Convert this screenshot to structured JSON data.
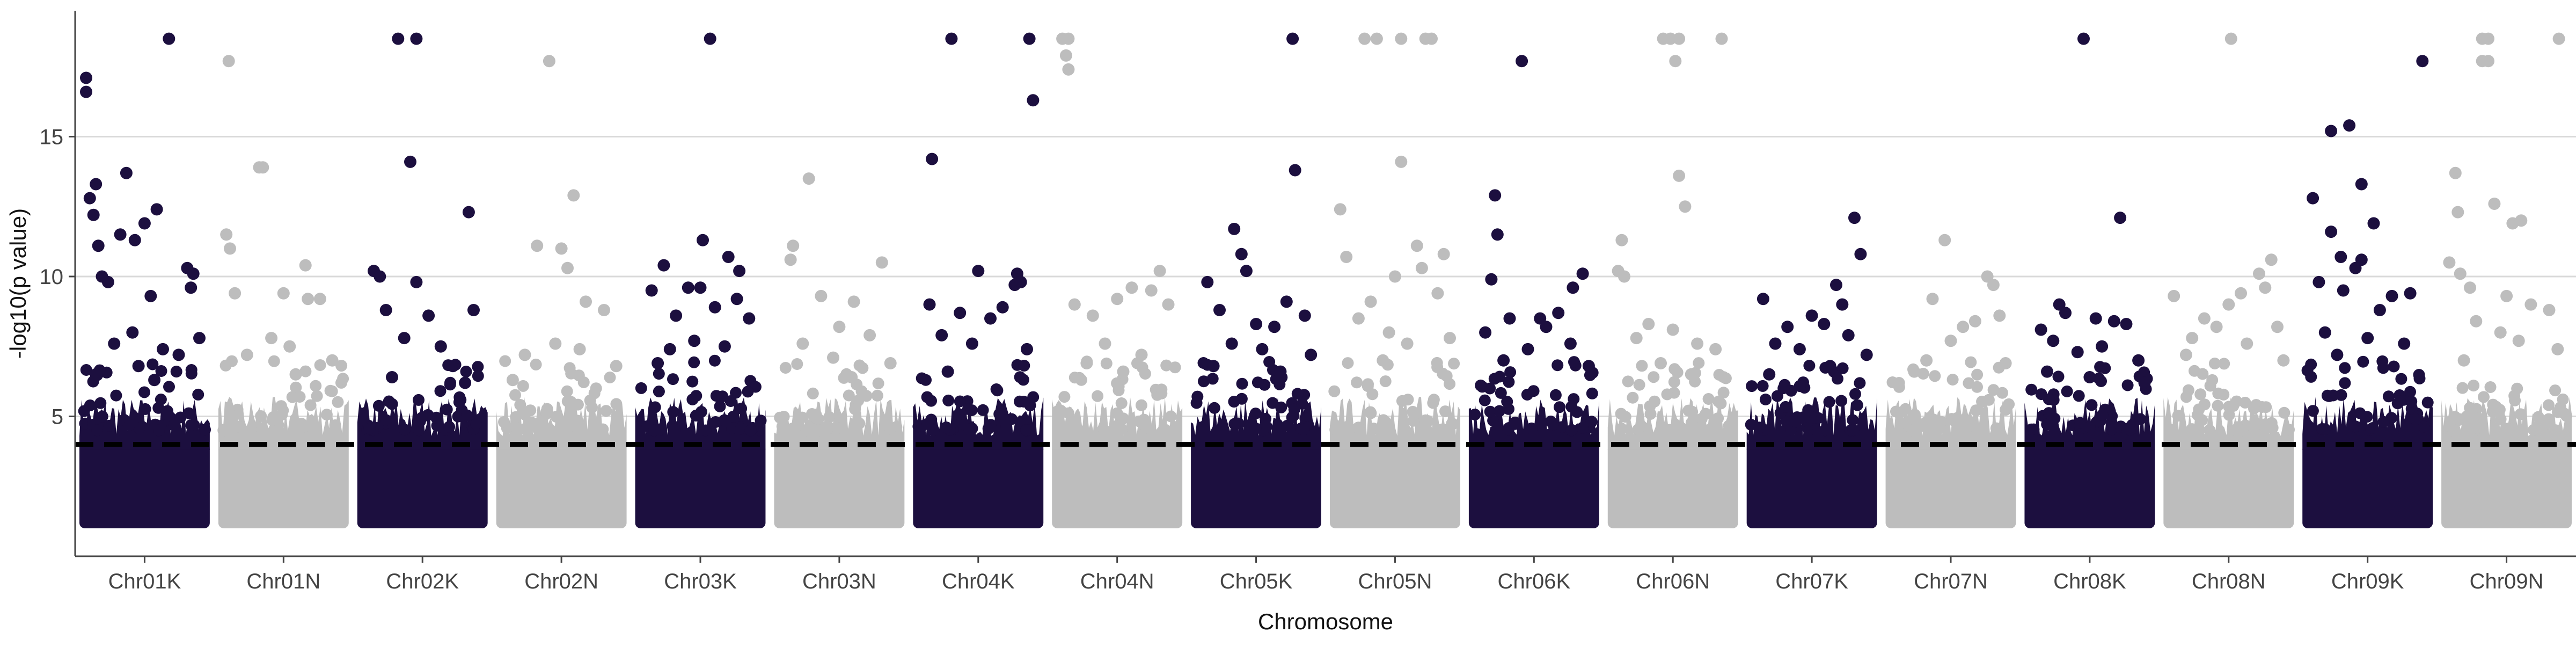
{
  "chart_data": {
    "type": "scatter",
    "subtype": "manhattan",
    "title": "",
    "xlabel": "Chromosome",
    "ylabel": "-log10(p value)",
    "ylim": [
      0,
      19.5
    ],
    "yticks": [
      5,
      10,
      15
    ],
    "grid": "horizontal major gridlines",
    "legend": "none",
    "threshold": {
      "value": 4,
      "style": "dashed",
      "color": "#000000"
    },
    "colors": {
      "odd_chromosome": "#1c0f3f",
      "even_chromosome": "#bdbdbd",
      "threshold": "#000000",
      "grid": "#d9d9d9"
    },
    "base_band": {
      "min": 1,
      "max": 4
    },
    "categories": [
      "Chr01K",
      "Chr01N",
      "Chr02K",
      "Chr02N",
      "Chr03K",
      "Chr03N",
      "Chr04K",
      "Chr04N",
      "Chr05K",
      "Chr05N",
      "Chr06K",
      "Chr06N",
      "Chr07K",
      "Chr07N",
      "Chr08K",
      "Chr08N",
      "Chr09K",
      "Chr09N"
    ],
    "series": [
      {
        "chromosome": "Chr01K",
        "points": [
          [
            0.02,
            16.6
          ],
          [
            0.02,
            17.1
          ],
          [
            0.1,
            13.3
          ],
          [
            0.08,
            12.2
          ],
          [
            0.05,
            12.8
          ],
          [
            0.12,
            11.1
          ],
          [
            0.15,
            10.0
          ],
          [
            0.2,
            9.8
          ],
          [
            0.35,
            13.7
          ],
          [
            0.42,
            11.3
          ],
          [
            0.5,
            11.9
          ],
          [
            0.6,
            12.4
          ],
          [
            0.3,
            11.5
          ],
          [
            0.7,
            18.5
          ],
          [
            0.55,
            9.3
          ],
          [
            0.85,
            10.3
          ],
          [
            0.9,
            10.1
          ],
          [
            0.88,
            9.6
          ],
          [
            0.25,
            7.6
          ],
          [
            0.4,
            8.0
          ],
          [
            0.65,
            7.4
          ],
          [
            0.78,
            7.2
          ],
          [
            0.95,
            7.8
          ],
          [
            0.1,
            6.5
          ],
          [
            0.45,
            6.8
          ],
          [
            0.58,
            6.3
          ]
        ]
      },
      {
        "chromosome": "Chr01N",
        "points": [
          [
            0.05,
            17.7
          ],
          [
            0.03,
            11.5
          ],
          [
            0.06,
            11.0
          ],
          [
            0.1,
            9.4
          ],
          [
            0.3,
            13.9
          ],
          [
            0.33,
            13.9
          ],
          [
            0.5,
            9.4
          ],
          [
            0.68,
            10.4
          ],
          [
            0.7,
            9.2
          ],
          [
            0.8,
            9.2
          ],
          [
            0.2,
            7.2
          ],
          [
            0.4,
            7.8
          ],
          [
            0.55,
            7.5
          ],
          [
            0.9,
            7.0
          ],
          [
            0.6,
            6.5
          ]
        ]
      },
      {
        "chromosome": "Chr02K",
        "points": [
          [
            0.3,
            18.5
          ],
          [
            0.45,
            18.5
          ],
          [
            0.4,
            14.1
          ],
          [
            0.1,
            10.2
          ],
          [
            0.15,
            10.0
          ],
          [
            0.45,
            9.8
          ],
          [
            0.88,
            12.3
          ],
          [
            0.2,
            8.8
          ],
          [
            0.55,
            8.6
          ],
          [
            0.92,
            8.8
          ],
          [
            0.35,
            7.8
          ],
          [
            0.65,
            7.5
          ],
          [
            0.75,
            6.8
          ],
          [
            0.25,
            6.4
          ],
          [
            0.85,
            6.2
          ]
        ]
      },
      {
        "chromosome": "Chr02N",
        "points": [
          [
            0.4,
            17.7
          ],
          [
            0.6,
            12.9
          ],
          [
            0.3,
            11.1
          ],
          [
            0.5,
            11.0
          ],
          [
            0.55,
            10.3
          ],
          [
            0.7,
            9.1
          ],
          [
            0.85,
            8.8
          ],
          [
            0.2,
            7.2
          ],
          [
            0.45,
            7.6
          ],
          [
            0.65,
            7.4
          ],
          [
            0.95,
            6.8
          ],
          [
            0.1,
            6.3
          ]
        ]
      },
      {
        "chromosome": "Chr03K",
        "points": [
          [
            0.58,
            18.5
          ],
          [
            0.52,
            11.3
          ],
          [
            0.2,
            10.4
          ],
          [
            0.4,
            9.6
          ],
          [
            0.5,
            9.6
          ],
          [
            0.73,
            10.7
          ],
          [
            0.82,
            10.2
          ],
          [
            0.8,
            9.2
          ],
          [
            0.1,
            9.5
          ],
          [
            0.3,
            8.6
          ],
          [
            0.62,
            8.9
          ],
          [
            0.9,
            8.5
          ],
          [
            0.25,
            7.4
          ],
          [
            0.45,
            7.7
          ],
          [
            0.7,
            7.5
          ],
          [
            0.15,
            6.9
          ]
        ]
      },
      {
        "chromosome": "Chr03N",
        "points": [
          [
            0.25,
            13.5
          ],
          [
            0.12,
            11.1
          ],
          [
            0.1,
            10.6
          ],
          [
            0.85,
            10.5
          ],
          [
            0.35,
            9.3
          ],
          [
            0.62,
            9.1
          ],
          [
            0.5,
            8.2
          ],
          [
            0.75,
            7.9
          ],
          [
            0.2,
            7.6
          ],
          [
            0.45,
            7.1
          ],
          [
            0.92,
            6.9
          ],
          [
            0.6,
            6.4
          ]
        ]
      },
      {
        "chromosome": "Chr04K",
        "points": [
          [
            0.12,
            14.2
          ],
          [
            0.28,
            18.5
          ],
          [
            0.92,
            18.5
          ],
          [
            0.95,
            16.3
          ],
          [
            0.5,
            10.2
          ],
          [
            0.82,
            10.1
          ],
          [
            0.8,
            9.7
          ],
          [
            0.85,
            9.8
          ],
          [
            0.1,
            9.0
          ],
          [
            0.35,
            8.7
          ],
          [
            0.6,
            8.5
          ],
          [
            0.7,
            8.9
          ],
          [
            0.2,
            7.9
          ],
          [
            0.45,
            7.6
          ],
          [
            0.9,
            7.4
          ],
          [
            0.25,
            6.6
          ]
        ]
      },
      {
        "chromosome": "Chr04N",
        "points": [
          [
            0.05,
            18.5
          ],
          [
            0.1,
            18.5
          ],
          [
            0.08,
            17.9
          ],
          [
            0.1,
            17.4
          ],
          [
            0.15,
            9.0
          ],
          [
            0.3,
            8.6
          ],
          [
            0.5,
            9.2
          ],
          [
            0.62,
            9.6
          ],
          [
            0.78,
            9.5
          ],
          [
            0.85,
            10.2
          ],
          [
            0.92,
            9.0
          ],
          [
            0.4,
            7.6
          ],
          [
            0.7,
            7.2
          ],
          [
            0.25,
            6.9
          ],
          [
            0.55,
            6.6
          ]
        ]
      },
      {
        "chromosome": "Chr05K",
        "points": [
          [
            0.8,
            18.5
          ],
          [
            0.82,
            13.8
          ],
          [
            0.32,
            11.7
          ],
          [
            0.38,
            10.8
          ],
          [
            0.42,
            10.2
          ],
          [
            0.1,
            9.8
          ],
          [
            0.2,
            8.8
          ],
          [
            0.5,
            8.3
          ],
          [
            0.65,
            8.2
          ],
          [
            0.75,
            9.1
          ],
          [
            0.9,
            8.6
          ],
          [
            0.3,
            7.6
          ],
          [
            0.55,
            7.4
          ],
          [
            0.95,
            7.2
          ],
          [
            0.15,
            6.8
          ],
          [
            0.7,
            6.6
          ]
        ]
      },
      {
        "chromosome": "Chr05N",
        "points": [
          [
            0.25,
            18.5
          ],
          [
            0.35,
            18.5
          ],
          [
            0.55,
            18.5
          ],
          [
            0.75,
            18.5
          ],
          [
            0.8,
            18.5
          ],
          [
            0.55,
            14.1
          ],
          [
            0.05,
            12.4
          ],
          [
            0.1,
            10.7
          ],
          [
            0.5,
            10.0
          ],
          [
            0.68,
            11.1
          ],
          [
            0.72,
            10.3
          ],
          [
            0.9,
            10.8
          ],
          [
            0.3,
            9.1
          ],
          [
            0.85,
            9.4
          ],
          [
            0.2,
            8.5
          ],
          [
            0.45,
            8.0
          ],
          [
            0.6,
            7.6
          ],
          [
            0.95,
            7.8
          ],
          [
            0.4,
            7.0
          ]
        ]
      },
      {
        "chromosome": "Chr06K",
        "points": [
          [
            0.18,
            12.9
          ],
          [
            0.2,
            11.5
          ],
          [
            0.15,
            9.9
          ],
          [
            0.4,
            17.7
          ],
          [
            0.9,
            10.1
          ],
          [
            0.82,
            9.6
          ],
          [
            0.3,
            8.5
          ],
          [
            0.55,
            8.5
          ],
          [
            0.7,
            8.7
          ],
          [
            0.6,
            8.2
          ],
          [
            0.1,
            8.0
          ],
          [
            0.45,
            7.4
          ],
          [
            0.25,
            7.0
          ],
          [
            0.8,
            7.6
          ],
          [
            0.95,
            6.8
          ]
        ]
      },
      {
        "chromosome": "Chr06N",
        "points": [
          [
            0.42,
            18.5
          ],
          [
            0.48,
            18.5
          ],
          [
            0.55,
            18.5
          ],
          [
            0.9,
            18.5
          ],
          [
            0.52,
            17.7
          ],
          [
            0.55,
            13.6
          ],
          [
            0.6,
            12.5
          ],
          [
            0.08,
            11.3
          ],
          [
            0.05,
            10.2
          ],
          [
            0.1,
            10.0
          ],
          [
            0.3,
            8.3
          ],
          [
            0.5,
            8.1
          ],
          [
            0.7,
            7.6
          ],
          [
            0.2,
            7.8
          ],
          [
            0.85,
            7.4
          ],
          [
            0.4,
            6.9
          ],
          [
            0.65,
            6.5
          ]
        ]
      },
      {
        "chromosome": "Chr07K",
        "points": [
          [
            0.85,
            12.1
          ],
          [
            0.9,
            10.8
          ],
          [
            0.1,
            9.2
          ],
          [
            0.7,
            9.7
          ],
          [
            0.75,
            9.0
          ],
          [
            0.3,
            8.2
          ],
          [
            0.5,
            8.6
          ],
          [
            0.6,
            8.3
          ],
          [
            0.8,
            7.9
          ],
          [
            0.2,
            7.6
          ],
          [
            0.4,
            7.4
          ],
          [
            0.95,
            7.2
          ],
          [
            0.65,
            6.8
          ],
          [
            0.15,
            6.5
          ]
        ]
      },
      {
        "chromosome": "Chr07N",
        "points": [
          [
            0.45,
            11.3
          ],
          [
            0.35,
            9.2
          ],
          [
            0.8,
            10.0
          ],
          [
            0.85,
            9.7
          ],
          [
            0.9,
            8.6
          ],
          [
            0.6,
            8.2
          ],
          [
            0.7,
            8.4
          ],
          [
            0.5,
            7.7
          ],
          [
            0.3,
            7.0
          ],
          [
            0.2,
            6.6
          ],
          [
            0.95,
            6.9
          ]
        ]
      },
      {
        "chromosome": "Chr08K",
        "points": [
          [
            0.45,
            18.5
          ],
          [
            0.75,
            12.1
          ],
          [
            0.25,
            9.0
          ],
          [
            0.3,
            8.7
          ],
          [
            0.55,
            8.5
          ],
          [
            0.7,
            8.4
          ],
          [
            0.8,
            8.3
          ],
          [
            0.1,
            8.1
          ],
          [
            0.2,
            7.7
          ],
          [
            0.4,
            7.3
          ],
          [
            0.6,
            7.5
          ],
          [
            0.9,
            7.0
          ],
          [
            0.15,
            6.6
          ],
          [
            0.5,
            6.4
          ],
          [
            0.95,
            6.2
          ]
        ]
      },
      {
        "chromosome": "Chr08N",
        "points": [
          [
            0.52,
            18.5
          ],
          [
            0.05,
            9.3
          ],
          [
            0.5,
            9.0
          ],
          [
            0.6,
            9.4
          ],
          [
            0.75,
            10.1
          ],
          [
            0.85,
            10.6
          ],
          [
            0.8,
            9.6
          ],
          [
            0.3,
            8.5
          ],
          [
            0.4,
            8.2
          ],
          [
            0.2,
            7.8
          ],
          [
            0.65,
            7.6
          ],
          [
            0.9,
            8.2
          ],
          [
            0.15,
            7.2
          ],
          [
            0.95,
            7.0
          ]
        ]
      },
      {
        "chromosome": "Chr09K",
        "points": [
          [
            0.05,
            12.8
          ],
          [
            0.2,
            15.2
          ],
          [
            0.35,
            15.4
          ],
          [
            0.95,
            17.7
          ],
          [
            0.45,
            13.3
          ],
          [
            0.2,
            11.6
          ],
          [
            0.28,
            10.7
          ],
          [
            0.55,
            11.9
          ],
          [
            0.4,
            10.3
          ],
          [
            0.45,
            10.6
          ],
          [
            0.1,
            9.8
          ],
          [
            0.3,
            9.5
          ],
          [
            0.7,
            9.3
          ],
          [
            0.85,
            9.4
          ],
          [
            0.6,
            8.8
          ],
          [
            0.15,
            8.0
          ],
          [
            0.5,
            7.8
          ],
          [
            0.8,
            7.6
          ],
          [
            0.25,
            7.2
          ]
        ]
      },
      {
        "chromosome": "Chr09N",
        "points": [
          [
            0.3,
            18.5
          ],
          [
            0.35,
            18.5
          ],
          [
            0.93,
            18.5
          ],
          [
            0.3,
            17.7
          ],
          [
            0.35,
            17.7
          ],
          [
            0.08,
            13.7
          ],
          [
            0.1,
            12.3
          ],
          [
            0.4,
            12.6
          ],
          [
            0.55,
            11.9
          ],
          [
            0.62,
            12.0
          ],
          [
            0.03,
            10.5
          ],
          [
            0.12,
            10.1
          ],
          [
            0.2,
            9.6
          ],
          [
            0.5,
            9.3
          ],
          [
            0.7,
            9.0
          ],
          [
            0.85,
            8.8
          ],
          [
            0.25,
            8.4
          ],
          [
            0.45,
            8.0
          ],
          [
            0.6,
            7.7
          ],
          [
            0.92,
            7.4
          ],
          [
            0.15,
            7.0
          ]
        ]
      }
    ]
  }
}
